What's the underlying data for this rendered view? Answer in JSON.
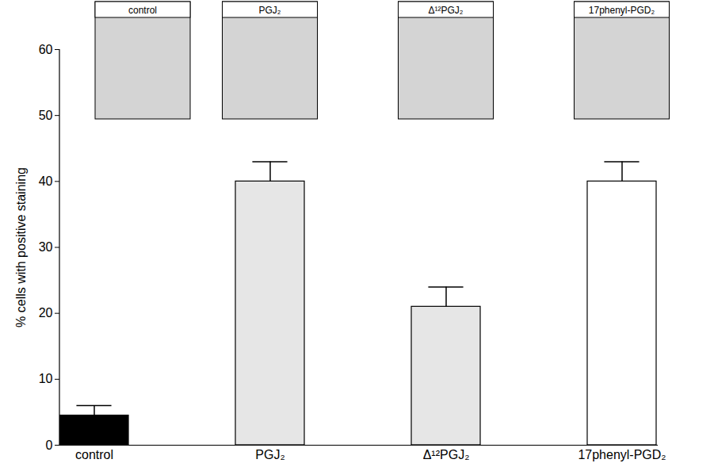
{
  "chart_data": {
    "type": "bar",
    "categories": [
      "control",
      "PGJ₂",
      "Δ¹²PGJ₂",
      "17phenyl-PGD₂"
    ],
    "values": [
      4.5,
      40,
      21,
      40
    ],
    "errors": [
      1.5,
      3,
      3,
      3
    ],
    "colors": [
      "#000000",
      "#e6e6e6",
      "#e6e6e6",
      "#ffffff"
    ],
    "y_label": "% cells with positive staining",
    "ylim": [
      0,
      60
    ],
    "yticks": [
      0,
      10,
      20,
      30,
      40,
      50,
      60
    ],
    "grid": false
  }
}
